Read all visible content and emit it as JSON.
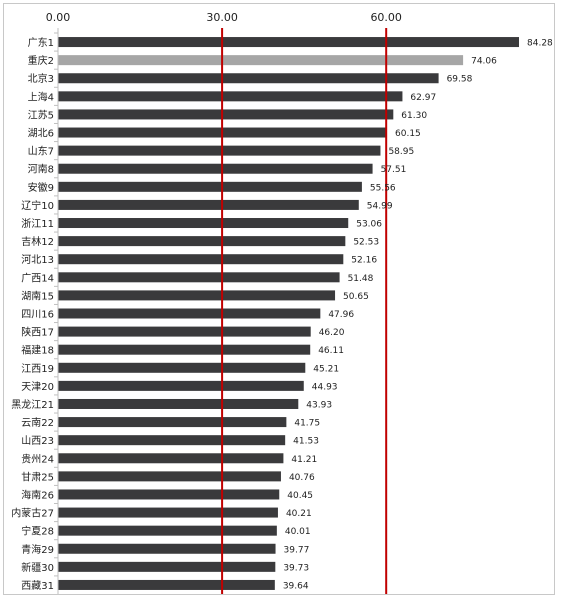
{
  "chart_data": {
    "type": "bar",
    "orientation": "horizontal",
    "categories": [
      "广东1",
      "重庆2",
      "北京3",
      "上海4",
      "江苏5",
      "湖北6",
      "山东7",
      "河南8",
      "安徽9",
      "辽宁10",
      "浙江11",
      "吉林12",
      "河北13",
      "广西14",
      "湖南15",
      "四川16",
      "陕西17",
      "福建18",
      "江西19",
      "天津20",
      "黑龙江21",
      "云南22",
      "山西23",
      "贵州24",
      "甘肃25",
      "海南26",
      "内蒙古27",
      "宁夏28",
      "青海29",
      "新疆30",
      "西藏31"
    ],
    "values": [
      84.28,
      74.06,
      69.58,
      62.97,
      61.3,
      60.15,
      58.95,
      57.51,
      55.56,
      54.99,
      53.06,
      52.53,
      52.16,
      51.48,
      50.65,
      47.96,
      46.2,
      46.11,
      45.21,
      44.93,
      43.93,
      41.75,
      41.53,
      41.21,
      40.76,
      40.45,
      40.21,
      40.01,
      39.77,
      39.73,
      39.64
    ],
    "value_labels": [
      "84.28",
      "74.06",
      "69.58",
      "62.97",
      "61.30",
      "60.15",
      "58.95",
      "57.51",
      "55.56",
      "54.99",
      "53.06",
      "52.53",
      "52.16",
      "51.48",
      "50.65",
      "47.96",
      "46.20",
      "46.11",
      "45.21",
      "44.93",
      "43.93",
      "41.75",
      "41.53",
      "41.21",
      "40.76",
      "40.45",
      "40.21",
      "40.01",
      "39.77",
      "39.73",
      "39.64"
    ],
    "x_tick_labels": [
      "0.00",
      "30.00",
      "60.00"
    ],
    "x_ticks": [
      0,
      30,
      60
    ],
    "xlim": [
      0,
      84.28
    ],
    "reference_lines": [
      30,
      60
    ],
    "axis_position": "top",
    "grid": false,
    "colors": {
      "bar": "#3a3a3c",
      "highlight_bar": "#a6a6a6",
      "reference_line": "#c00000",
      "axis": "#bfbfbf"
    },
    "highlight_index": 1
  }
}
